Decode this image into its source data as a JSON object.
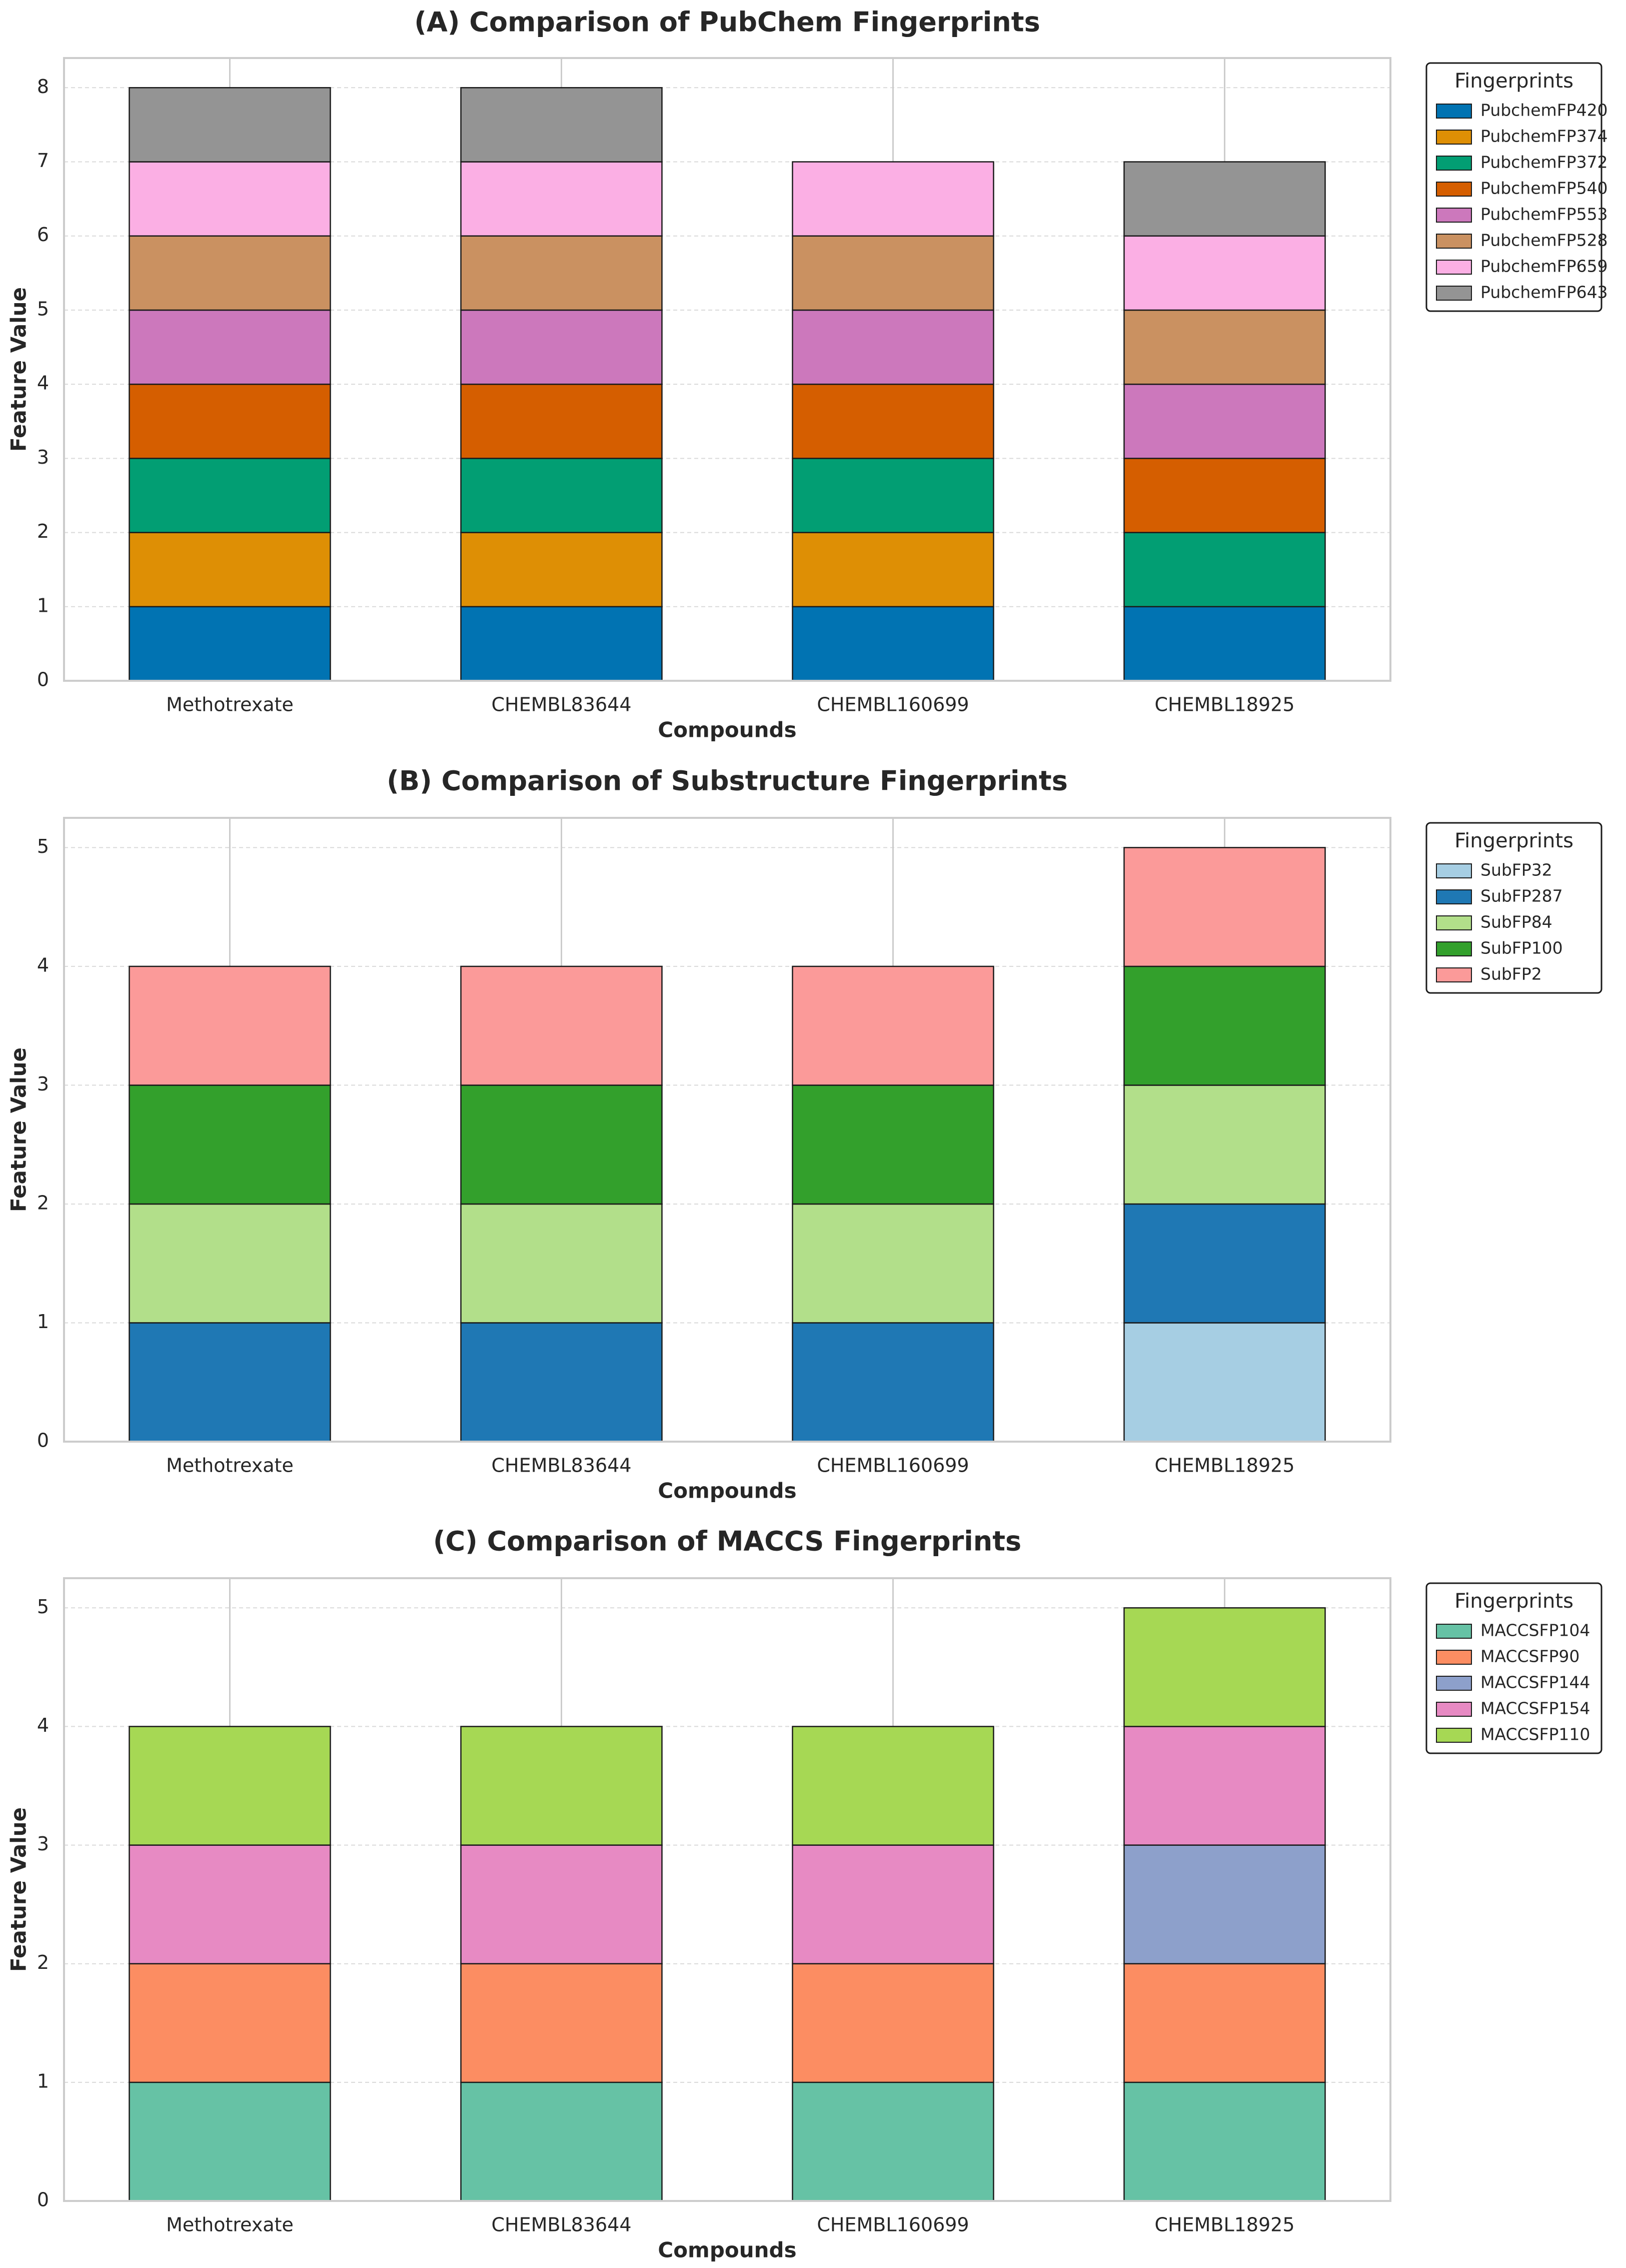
{
  "chart_data": [
    {
      "type": "bar",
      "stacked": true,
      "title": "(A) Comparison of PubChem Fingerprints",
      "xlabel": "Compounds",
      "ylabel": "Feature Value",
      "ylim": [
        0,
        8.4
      ],
      "yticks": [
        0,
        1,
        2,
        3,
        4,
        5,
        6,
        7,
        8
      ],
      "grid": true,
      "legend_title": "Fingerprints",
      "legend_position": "outside-top-right",
      "categories": [
        "Methotrexate",
        "CHEMBL83644",
        "CHEMBL160699",
        "CHEMBL18925"
      ],
      "series": [
        {
          "name": "PubchemFP420",
          "color": "#0173b2",
          "values": [
            1,
            1,
            1,
            1
          ]
        },
        {
          "name": "PubchemFP374",
          "color": "#de8f05",
          "values": [
            1,
            1,
            1,
            0
          ]
        },
        {
          "name": "PubchemFP372",
          "color": "#029e73",
          "values": [
            1,
            1,
            1,
            1
          ]
        },
        {
          "name": "PubchemFP540",
          "color": "#d55e00",
          "values": [
            1,
            1,
            1,
            1
          ]
        },
        {
          "name": "PubchemFP553",
          "color": "#cc78bc",
          "values": [
            1,
            1,
            1,
            1
          ]
        },
        {
          "name": "PubchemFP528",
          "color": "#ca9161",
          "values": [
            1,
            1,
            1,
            1
          ]
        },
        {
          "name": "PubchemFP659",
          "color": "#fbafe4",
          "values": [
            1,
            1,
            1,
            1
          ]
        },
        {
          "name": "PubchemFP643",
          "color": "#949494",
          "values": [
            1,
            1,
            0,
            1
          ]
        }
      ]
    },
    {
      "type": "bar",
      "stacked": true,
      "title": "(B) Comparison of Substructure Fingerprints",
      "xlabel": "Compounds",
      "ylabel": "Feature Value",
      "ylim": [
        0,
        5.25
      ],
      "yticks": [
        0,
        1,
        2,
        3,
        4,
        5
      ],
      "grid": true,
      "legend_title": "Fingerprints",
      "legend_position": "outside-top-right",
      "categories": [
        "Methotrexate",
        "CHEMBL83644",
        "CHEMBL160699",
        "CHEMBL18925"
      ],
      "series": [
        {
          "name": "SubFP32",
          "color": "#a6cee3",
          "values": [
            0,
            0,
            0,
            1
          ]
        },
        {
          "name": "SubFP287",
          "color": "#1f78b4",
          "values": [
            1,
            1,
            1,
            1
          ]
        },
        {
          "name": "SubFP84",
          "color": "#b2df8a",
          "values": [
            1,
            1,
            1,
            1
          ]
        },
        {
          "name": "SubFP100",
          "color": "#33a02c",
          "values": [
            1,
            1,
            1,
            1
          ]
        },
        {
          "name": "SubFP2",
          "color": "#fb9a99",
          "values": [
            1,
            1,
            1,
            1
          ]
        }
      ]
    },
    {
      "type": "bar",
      "stacked": true,
      "title": "(C) Comparison of MACCS Fingerprints",
      "xlabel": "Compounds",
      "ylabel": "Feature Value",
      "ylim": [
        0,
        5.25
      ],
      "yticks": [
        0,
        1,
        2,
        3,
        4,
        5
      ],
      "grid": true,
      "legend_title": "Fingerprints",
      "legend_position": "outside-top-right",
      "categories": [
        "Methotrexate",
        "CHEMBL83644",
        "CHEMBL160699",
        "CHEMBL18925"
      ],
      "series": [
        {
          "name": "MACCSFP104",
          "color": "#66c2a5",
          "values": [
            1,
            1,
            1,
            1
          ]
        },
        {
          "name": "MACCSFP90",
          "color": "#fc8d62",
          "values": [
            1,
            1,
            1,
            1
          ]
        },
        {
          "name": "MACCSFP144",
          "color": "#8da0cb",
          "values": [
            0,
            0,
            0,
            1
          ]
        },
        {
          "name": "MACCSFP154",
          "color": "#e78ac3",
          "values": [
            1,
            1,
            1,
            1
          ]
        },
        {
          "name": "MACCSFP110",
          "color": "#a6d854",
          "values": [
            1,
            1,
            1,
            1
          ]
        }
      ]
    }
  ]
}
